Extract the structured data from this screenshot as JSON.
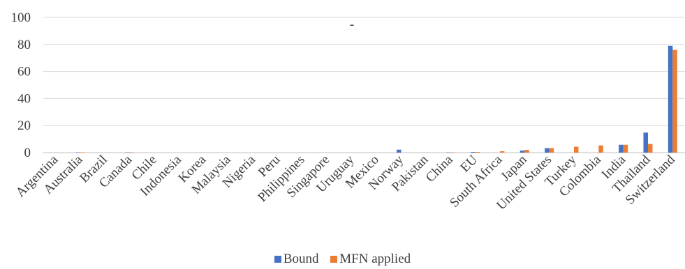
{
  "chart_data": {
    "type": "bar",
    "title": "-",
    "xlabel": "",
    "ylabel": "",
    "ylim": [
      0,
      100
    ],
    "yticks": [
      0,
      20,
      40,
      60,
      80,
      100
    ],
    "grid": true,
    "legend_position": "bottom",
    "categories": [
      "Argentina",
      "Australia",
      "Brazil",
      "Canada",
      "Chile",
      "Indonesia",
      "Korea",
      "Malaysia",
      "Nigeria",
      "Peru",
      "Philippines",
      "Singapore",
      "Uruguay",
      "Mexico",
      "Norway",
      "Pakistan",
      "China",
      "EU",
      "South Africa",
      "Japan",
      "United States",
      "Turkey",
      "Colombia",
      "India",
      "Thailand",
      "Switzerland"
    ],
    "series": [
      {
        "name": "Bound",
        "color": "#4472C4",
        "values": [
          0,
          0.2,
          0,
          0.2,
          0,
          0,
          0,
          0,
          0,
          0,
          0,
          0,
          0,
          0,
          2.2,
          0,
          0.1,
          0.5,
          0,
          1.5,
          3.3,
          0,
          0,
          5.8,
          14.8,
          79
        ]
      },
      {
        "name": "MFN applied",
        "color": "#ED7D31",
        "values": [
          0,
          0.2,
          0,
          0.3,
          0,
          0,
          0,
          0,
          0,
          0,
          0,
          0,
          0,
          0,
          0,
          0,
          0.2,
          0.5,
          1.0,
          2.0,
          3.3,
          4.4,
          5.3,
          5.8,
          6.4,
          76
        ]
      }
    ]
  }
}
